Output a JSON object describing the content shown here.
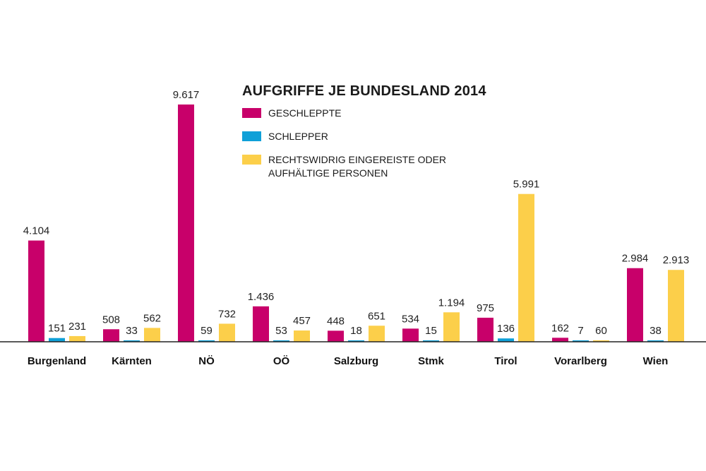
{
  "chart_data": {
    "type": "bar",
    "title": "AUFGRIFFE JE BUNDESLAND 2014",
    "categories": [
      "Burgenland",
      "Kärnten",
      "NÖ",
      "OÖ",
      "Salzburg",
      "Stmk",
      "Tirol",
      "Vorarlberg",
      "Wien"
    ],
    "series": [
      {
        "name": "GESCHLEPPTE",
        "color": "#c8006a",
        "values": [
          4104,
          508,
          9617,
          1436,
          448,
          534,
          975,
          162,
          2984
        ],
        "labels": [
          "4.104",
          "508",
          "9.617",
          "1.436",
          "448",
          "534",
          "975",
          "162",
          "2.984"
        ]
      },
      {
        "name": "SCHLEPPER",
        "color": "#0fa0d8",
        "values": [
          151,
          33,
          59,
          53,
          18,
          15,
          136,
          7,
          38
        ],
        "labels": [
          "151",
          "33",
          "59",
          "53",
          "18",
          "15",
          "136",
          "7",
          "38"
        ]
      },
      {
        "name": "RECHTSWIDRIG EINGEREISTE ODER AUFHÄLTIGE PERSONEN",
        "color": "#fccf4a",
        "values": [
          231,
          562,
          732,
          457,
          651,
          1194,
          5991,
          60,
          2913
        ],
        "labels": [
          "231",
          "562",
          "732",
          "457",
          "651",
          "1.194",
          "5.991",
          "60",
          "2.913"
        ]
      }
    ],
    "ylim": [
      0,
      10000
    ],
    "grid": false,
    "legend_position": "top-center"
  }
}
